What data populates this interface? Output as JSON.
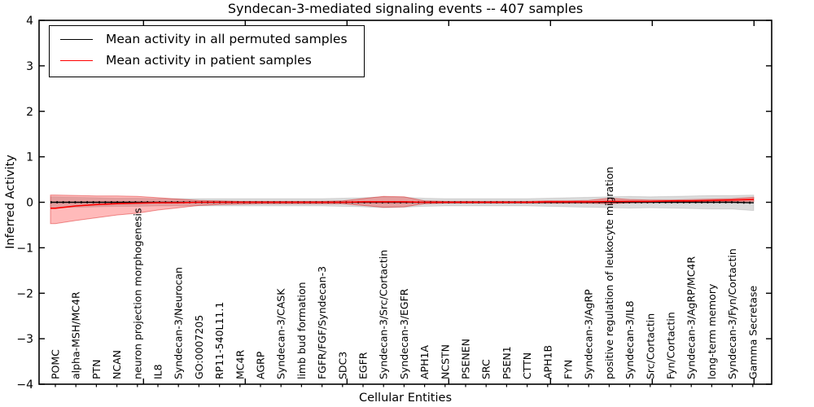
{
  "chart_data": {
    "type": "line",
    "title": "Syndecan-3-mediated signaling events -- 407 samples",
    "xlabel": "Cellular Entities",
    "ylabel": "Inferred Activity",
    "ylim": [
      -4,
      4
    ],
    "yticks": [
      -4,
      -3,
      -2,
      -1,
      0,
      1,
      2,
      3,
      4
    ],
    "grid": false,
    "legend_position": "upper left",
    "categories": [
      "POMC",
      "alpha-MSH/MC4R",
      "PTN",
      "NCAN",
      "neuron projection morphogenesis",
      "IL8",
      "Syndecan-3/Neurocan",
      "GO:0007205",
      "RP11-540L11.1",
      "MC4R",
      "AGRP",
      "Syndecan-3/CASK",
      "limb bud formation",
      "FGFR/FGF/Syndecan-3",
      "SDC3",
      "EGFR",
      "Syndecan-3/Src/Cortactin",
      "Syndecan-3/EGFR",
      "APH1A",
      "NCSTN",
      "PSENEN",
      "SRC",
      "PSEN1",
      "CTTN",
      "APH1B",
      "FYN",
      "Syndecan-3/AgRP",
      "positive regulation of leukocyte migration",
      "Syndecan-3/IL8",
      "Src/Cortactin",
      "Fyn/Cortactin",
      "Syndecan-3/AgRP/MC4R",
      "long-term memory",
      "Syndecan-3/Fyn/Cortactin",
      "Gamma Secretase"
    ],
    "series": [
      {
        "name": "Mean activity in all permuted samples",
        "color": "#000000",
        "values": [
          0,
          0,
          0,
          0,
          0,
          0,
          0,
          0,
          0,
          0,
          0,
          0,
          0,
          0,
          0,
          0,
          0,
          0,
          0,
          0,
          0,
          0,
          0,
          0,
          0,
          0,
          0,
          0,
          0,
          0,
          0,
          0,
          0,
          0,
          -0.01
        ],
        "band_std": [
          0.12,
          0.11,
          0.1,
          0.09,
          0.09,
          0.08,
          0.08,
          0.08,
          0.08,
          0.08,
          0.08,
          0.08,
          0.08,
          0.08,
          0.09,
          0.1,
          0.12,
          0.11,
          0.09,
          0.08,
          0.08,
          0.08,
          0.08,
          0.08,
          0.09,
          0.1,
          0.11,
          0.12,
          0.13,
          0.12,
          0.13,
          0.14,
          0.15,
          0.15,
          0.17
        ]
      },
      {
        "name": "Mean activity in patient samples",
        "color": "#ff0000",
        "values": [
          -0.13,
          -0.08,
          -0.05,
          -0.03,
          -0.02,
          -0.01,
          -0.01,
          0,
          0,
          0,
          0,
          0,
          0,
          0,
          0,
          0.01,
          0.01,
          0.01,
          0,
          0,
          0,
          0,
          0,
          0,
          0.01,
          0.01,
          0.01,
          0.02,
          0.02,
          0.02,
          0.03,
          0.03,
          0.04,
          0.05,
          0.06
        ],
        "band_upper": [
          0.16,
          0.15,
          0.14,
          0.14,
          0.13,
          0.1,
          0.07,
          0.04,
          0.03,
          0.02,
          0.02,
          0.02,
          0.02,
          0.02,
          0.03,
          0.08,
          0.13,
          0.12,
          0.03,
          0.02,
          0.02,
          0.02,
          0.02,
          0.02,
          0.03,
          0.03,
          0.04,
          0.09,
          0.06,
          0.05,
          0.05,
          0.06,
          0.07,
          0.08,
          0.11
        ],
        "band_lower": [
          -0.47,
          -0.4,
          -0.34,
          -0.28,
          -0.24,
          -0.17,
          -0.12,
          -0.07,
          -0.05,
          -0.04,
          -0.03,
          -0.03,
          -0.03,
          -0.03,
          -0.03,
          -0.07,
          -0.11,
          -0.1,
          -0.03,
          -0.02,
          -0.02,
          -0.02,
          -0.02,
          -0.02,
          -0.02,
          -0.02,
          -0.02,
          -0.03,
          -0.01,
          0.0,
          0.0,
          0.01,
          0.01,
          0.02,
          0.02
        ]
      }
    ],
    "colors": {
      "permuted_line": "#000000",
      "patient_line": "#ff0000",
      "permuted_band": "#000000",
      "patient_band": "#ff0000"
    }
  }
}
